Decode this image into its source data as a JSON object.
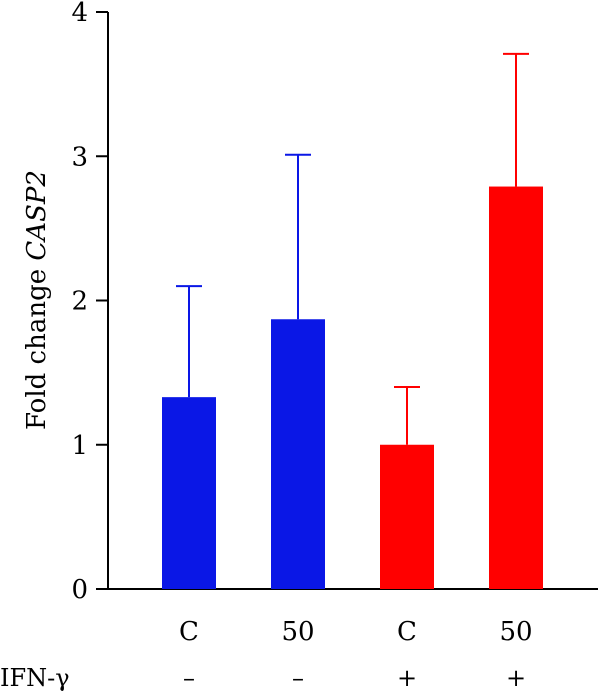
{
  "chart_data": {
    "type": "bar",
    "categories": [
      "C",
      "50",
      "C",
      "50"
    ],
    "values": [
      1.33,
      1.87,
      1.0,
      2.79
    ],
    "error_upper": [
      2.1,
      3.01,
      1.4,
      3.71
    ],
    "bar_colors": [
      "#0a17e6",
      "#0a17e6",
      "#ff0000",
      "#ff0000"
    ],
    "ylabel_prefix": "Fold change ",
    "ylabel_gene": "CASP2",
    "ylim": [
      0,
      4
    ],
    "yticks": [
      "0",
      "1",
      "2",
      "3",
      "4"
    ],
    "factor": {
      "label": "IFN-γ",
      "levels": [
        "–",
        "–",
        "+",
        "+"
      ]
    },
    "grid": false,
    "legend": "none"
  }
}
